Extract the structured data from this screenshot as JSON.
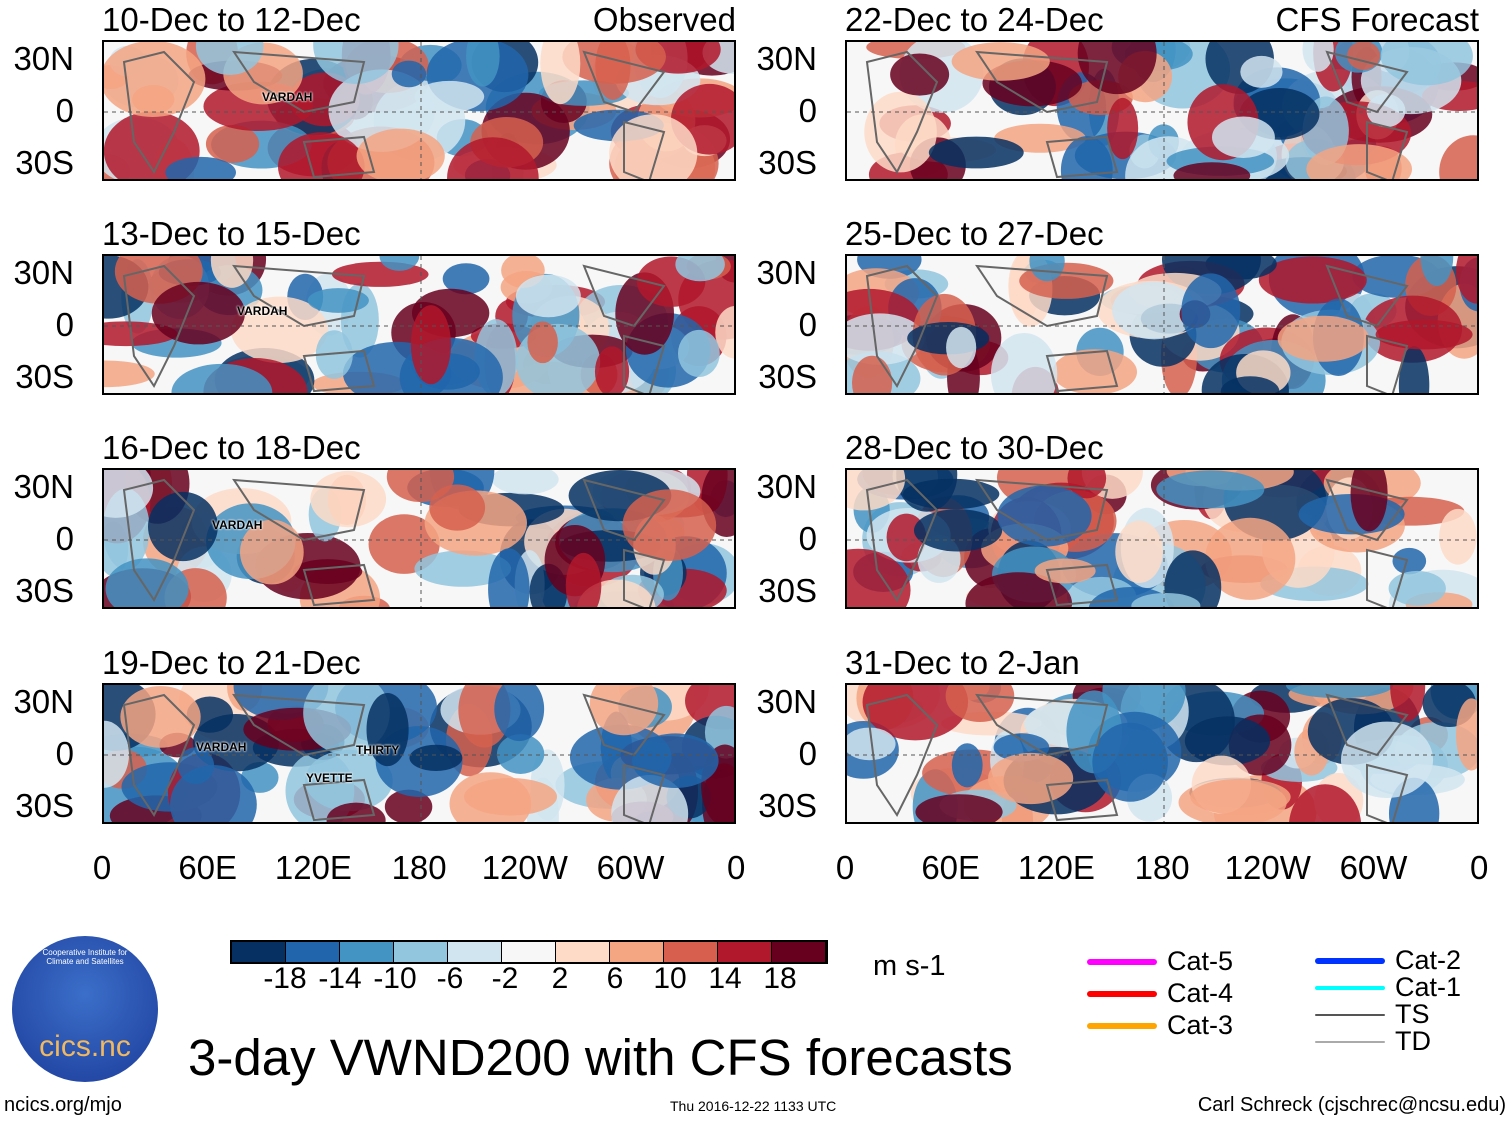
{
  "panels_left": [
    {
      "title": "10-Dec to 12-Dec",
      "tag": "Observed",
      "storms": [
        "VARDAH"
      ]
    },
    {
      "title": "13-Dec to 15-Dec",
      "storms": [
        "VARDAH"
      ]
    },
    {
      "title": "16-Dec to 18-Dec",
      "storms": [
        "VARDAH"
      ]
    },
    {
      "title": "19-Dec to 21-Dec",
      "storms": [
        "VARDAH",
        "THIRTY",
        "YVETTE"
      ]
    }
  ],
  "panels_right": [
    {
      "title": "22-Dec to 24-Dec",
      "tag": "CFS Forecast"
    },
    {
      "title": "25-Dec to 27-Dec"
    },
    {
      "title": "28-Dec to 30-Dec"
    },
    {
      "title": "31-Dec to 2-Jan"
    }
  ],
  "lat_labels": [
    "30N",
    "0",
    "30S"
  ],
  "lon_labels": [
    "0",
    "60E",
    "120E",
    "180",
    "120W",
    "60W",
    "0"
  ],
  "colorbar": {
    "colors": [
      "#053061",
      "#2166ac",
      "#4393c3",
      "#92c5de",
      "#d1e5f0",
      "#f7f7f7",
      "#fddbc7",
      "#f4a582",
      "#d6604d",
      "#b2182b",
      "#67001f"
    ],
    "labels": [
      "-18",
      "-14",
      "-10",
      "-6",
      "-2",
      "2",
      "6",
      "10",
      "14",
      "18"
    ],
    "units": "m s-1"
  },
  "legend": [
    {
      "label": "Cat-5",
      "color": "#ff00ff"
    },
    {
      "label": "Cat-4",
      "color": "#ff0000"
    },
    {
      "label": "Cat-3",
      "color": "#ffa500"
    },
    {
      "label": "Cat-2",
      "color": "#0033ff"
    },
    {
      "label": "Cat-1",
      "color": "#00ffff"
    },
    {
      "label": "TS",
      "color": "#555555"
    },
    {
      "label": "TD",
      "color": "#aaaaaa"
    }
  ],
  "title": "3-day VWND200 with CFS forecasts",
  "logo_text": "cics.nc",
  "logo_ring": "Cooperative Institute for Climate and Satellites",
  "footer": {
    "left": "ncics.org/mjo",
    "center": "Thu 2016-12-22 1133 UTC",
    "right": "Carl Schreck (cjschrec@ncsu.edu)"
  }
}
